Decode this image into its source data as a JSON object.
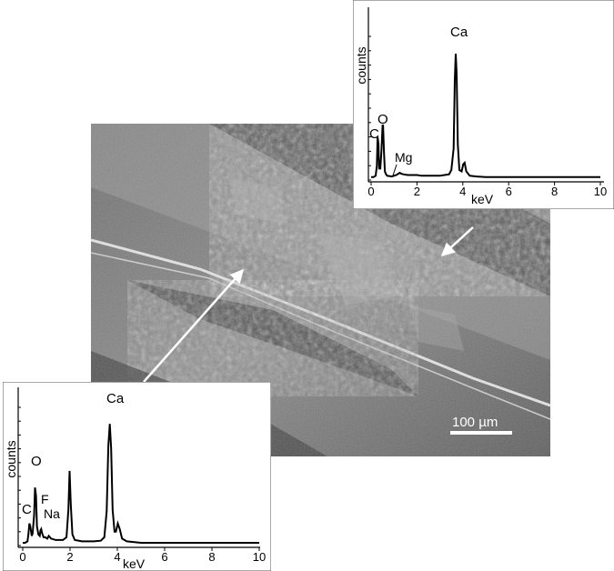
{
  "sem_image": {
    "scale_bar_label": "100 µm"
  },
  "chart_data": [
    {
      "type": "line",
      "xlabel": "keV",
      "ylabel": "counts",
      "xlim": [
        0,
        10
      ],
      "ylim": [
        0,
        100
      ],
      "x_ticks": [
        "0",
        "2",
        "4",
        "6",
        "8",
        "10"
      ],
      "series": [
        {
          "x": [
            0,
            0.1,
            0.2,
            0.25,
            0.28,
            0.32,
            0.35,
            0.4,
            0.45,
            0.5,
            0.52,
            0.56,
            0.6,
            0.65,
            0.7,
            0.9,
            1.1,
            1.2,
            1.25,
            1.3,
            1.4,
            1.6,
            1.8,
            2,
            2.2,
            2.6,
            3,
            3.2,
            3.4,
            3.5,
            3.6,
            3.65,
            3.69,
            3.73,
            3.78,
            3.85,
            3.95,
            4.02,
            4.08,
            4.15,
            4.3,
            4.6,
            5,
            6,
            7,
            8,
            9,
            10
          ],
          "y": [
            2,
            2,
            3,
            10,
            30,
            25,
            8,
            8,
            20,
            38,
            38,
            20,
            6,
            4,
            3,
            2.5,
            3.5,
            4.5,
            5,
            4.5,
            4,
            3.5,
            3.5,
            3.5,
            3,
            3,
            3,
            3.5,
            4,
            7,
            22,
            70,
            88,
            74,
            25,
            7,
            6,
            11,
            12,
            6,
            3,
            2.5,
            2,
            2,
            2,
            2,
            2,
            2
          ]
        }
      ],
      "peak_labels": [
        "Ca",
        "C",
        "O",
        "Mg"
      ]
    },
    {
      "type": "line",
      "xlabel": "keV",
      "ylabel": "counts",
      "xlim": [
        0,
        10
      ],
      "ylim": [
        0,
        100
      ],
      "x_ticks": [
        "0",
        "2",
        "4",
        "6",
        "8",
        "10"
      ],
      "series": [
        {
          "x": [
            0,
            0.1,
            0.2,
            0.24,
            0.28,
            0.32,
            0.38,
            0.42,
            0.48,
            0.52,
            0.56,
            0.6,
            0.66,
            0.72,
            0.75,
            0.78,
            0.82,
            0.88,
            0.95,
            1.04,
            1.1,
            1.2,
            1.4,
            1.7,
            1.85,
            1.93,
            1.98,
            2.03,
            2.1,
            2.2,
            2.5,
            3,
            3.3,
            3.45,
            3.55,
            3.62,
            3.68,
            3.74,
            3.8,
            3.88,
            3.94,
            4.02,
            4.1,
            4.2,
            4.4,
            5,
            6,
            7,
            8,
            9,
            10
          ],
          "y": [
            2,
            2,
            3,
            8,
            16,
            14,
            7,
            9,
            22,
            42,
            36,
            14,
            8,
            7,
            11,
            12,
            9,
            6,
            6,
            5,
            7,
            5,
            4,
            4,
            6,
            26,
            54,
            30,
            8,
            4,
            3,
            3,
            3.5,
            6,
            25,
            72,
            88,
            70,
            26,
            10,
            10,
            16,
            12,
            5,
            3,
            2,
            2,
            2,
            2,
            2,
            2
          ]
        }
      ],
      "peak_labels": [
        "Ca",
        "C",
        "O",
        "F",
        "Na"
      ]
    }
  ]
}
